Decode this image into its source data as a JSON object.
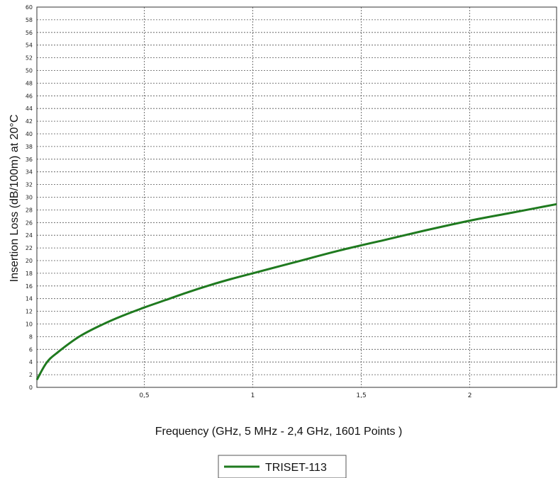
{
  "chart_data": {
    "type": "line",
    "title": "",
    "xlabel": "Frequency (GHz, 5 MHz - 2,4 GHz, 1601 Points )",
    "ylabel": "Insertion Loss (dB/100m) at 20°C",
    "xlim": [
      0.005,
      2.4
    ],
    "ylim": [
      0,
      60
    ],
    "x_ticks": [
      0.5,
      1,
      1.5,
      2
    ],
    "x_tick_labels": [
      "0,5",
      "1",
      "1,5",
      "2"
    ],
    "y_ticks": [
      0,
      2,
      4,
      6,
      8,
      10,
      12,
      14,
      16,
      18,
      20,
      22,
      24,
      26,
      28,
      30,
      32,
      34,
      36,
      38,
      40,
      42,
      44,
      46,
      48,
      50,
      52,
      54,
      56,
      58,
      60
    ],
    "grid": true,
    "legend_position": "bottom-center",
    "series": [
      {
        "name": "TRISET-113",
        "color": "#1f7a1f",
        "x": [
          0.005,
          0.05,
          0.1,
          0.2,
          0.3,
          0.4,
          0.5,
          0.6,
          0.7,
          0.8,
          0.9,
          1.0,
          1.2,
          1.4,
          1.6,
          1.8,
          2.0,
          2.2,
          2.4
        ],
        "y": [
          1.2,
          3.9,
          5.5,
          8.0,
          9.8,
          11.3,
          12.6,
          13.8,
          15.0,
          16.1,
          17.1,
          18.0,
          19.8,
          21.6,
          23.2,
          24.8,
          26.3,
          27.6,
          28.9
        ]
      }
    ]
  }
}
